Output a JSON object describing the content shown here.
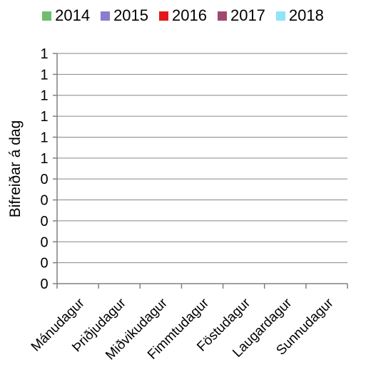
{
  "chart_data": {
    "type": "bar",
    "title": "",
    "xlabel": "",
    "ylabel": "Bifreiðar á dag",
    "categories": [
      "Mánudagur",
      "Þriðjudagur",
      "Miðvikudagur",
      "Fimmtudagur",
      "Föstudagur",
      "Laugardagur",
      "Sunnudagur"
    ],
    "series": [
      {
        "name": "2014",
        "color": "#6DBE6D",
        "values": [
          0,
          0,
          0,
          0,
          0,
          0,
          0
        ]
      },
      {
        "name": "2015",
        "color": "#8C7CCF",
        "values": [
          0,
          0,
          0,
          0,
          0,
          0,
          0
        ]
      },
      {
        "name": "2016",
        "color": "#E3181B",
        "values": [
          0,
          0,
          0,
          0,
          0,
          0,
          0
        ]
      },
      {
        "name": "2017",
        "color": "#A0496E",
        "values": [
          0,
          0,
          0,
          0,
          0,
          0,
          0
        ]
      },
      {
        "name": "2018",
        "color": "#8FE4F6",
        "values": [
          0,
          0,
          0,
          0,
          0,
          0,
          0
        ]
      }
    ],
    "y_tick_labels": [
      "0",
      "0",
      "0",
      "0",
      "0",
      "0",
      "1",
      "1",
      "1",
      "1",
      "1",
      "1"
    ],
    "ylim": [
      0,
      1
    ],
    "grid": true,
    "legend_position": "top"
  }
}
